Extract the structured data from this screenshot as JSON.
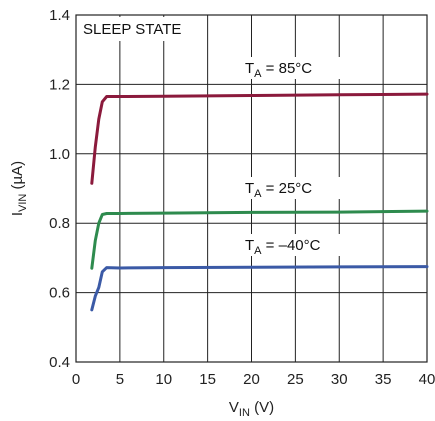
{
  "chart_data": {
    "type": "line",
    "xlabel": {
      "main": "V",
      "sub": "IN",
      "unit": " (V)"
    },
    "ylabel": {
      "main": "I",
      "sub": "VIN",
      "unit": " (µA)"
    },
    "xlim": [
      0,
      40
    ],
    "ylim": [
      0.4,
      1.4
    ],
    "x_ticks": [
      "0",
      "5",
      "10",
      "15",
      "20",
      "25",
      "30",
      "35",
      "40"
    ],
    "y_ticks": [
      "0.4",
      "0.6",
      "0.8",
      "1.0",
      "1.2",
      "1.4"
    ],
    "grid": true,
    "annotation": "SLEEP STATE",
    "series": [
      {
        "label": {
          "main": "T",
          "sub": "A",
          "rest": " = 85°C"
        },
        "color": "#8b1a3c",
        "points": [
          [
            1.8,
            0.915
          ],
          [
            2.2,
            1.02
          ],
          [
            2.6,
            1.1
          ],
          [
            3.0,
            1.15
          ],
          [
            3.5,
            1.165
          ],
          [
            5,
            1.165
          ],
          [
            10,
            1.166
          ],
          [
            20,
            1.168
          ],
          [
            30,
            1.17
          ],
          [
            40,
            1.172
          ]
        ]
      },
      {
        "label": {
          "main": "T",
          "sub": "A",
          "rest": " = 25°C"
        },
        "color": "#2e8b4e",
        "points": [
          [
            1.8,
            0.67
          ],
          [
            2.2,
            0.75
          ],
          [
            2.6,
            0.8
          ],
          [
            3.0,
            0.825
          ],
          [
            3.5,
            0.828
          ],
          [
            5,
            0.828
          ],
          [
            10,
            0.829
          ],
          [
            20,
            0.831
          ],
          [
            30,
            0.832
          ],
          [
            40,
            0.835
          ]
        ]
      },
      {
        "label": {
          "main": "T",
          "sub": "A",
          "rest": " = –40°C"
        },
        "color": "#3b5aa6",
        "points": [
          [
            1.8,
            0.55
          ],
          [
            2.2,
            0.59
          ],
          [
            2.6,
            0.615
          ],
          [
            3.0,
            0.66
          ],
          [
            3.5,
            0.672
          ],
          [
            5,
            0.671
          ],
          [
            10,
            0.672
          ],
          [
            20,
            0.673
          ],
          [
            30,
            0.674
          ],
          [
            40,
            0.675
          ]
        ]
      }
    ]
  }
}
